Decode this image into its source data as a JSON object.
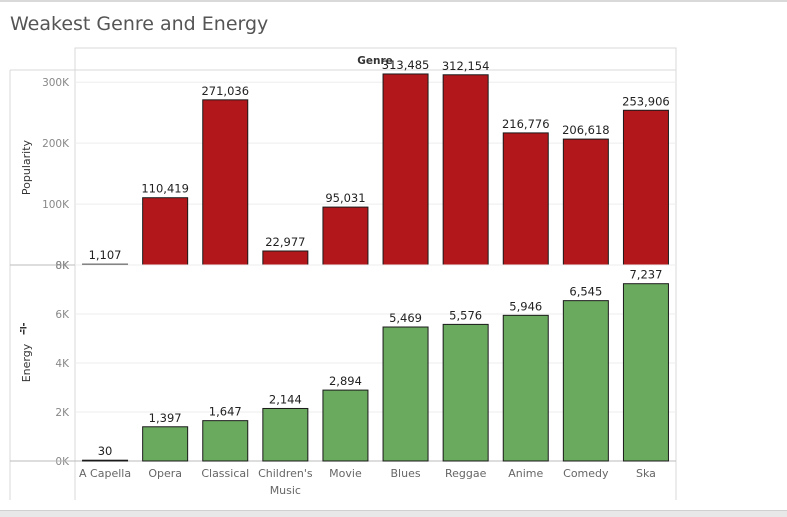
{
  "page": {
    "title": "Weakest Genre and Energy"
  },
  "chart_data": {
    "type": "bar",
    "header": "Genre",
    "categories": [
      "A Capella",
      "Opera",
      "Classical",
      "Children's Music",
      "Movie",
      "Blues",
      "Reggae",
      "Anime",
      "Comedy",
      "Ska"
    ],
    "panels": [
      {
        "measure": "Popularity",
        "color": "#b2181b",
        "ylim": [
          0,
          320000
        ],
        "ticks": [
          0,
          100000,
          200000,
          300000
        ],
        "tick_labels": [
          "0K",
          "100K",
          "200K",
          "300K"
        ],
        "values": [
          1107,
          110419,
          271036,
          22977,
          95031,
          313485,
          312154,
          216776,
          206618,
          253906
        ],
        "labels": [
          "1,107",
          "110,419",
          "271,036",
          "22,977",
          "95,031",
          "313,485",
          "312,154",
          "216,776",
          "206,618",
          "253,906"
        ]
      },
      {
        "measure": "Energy",
        "color": "#6aaa5e",
        "ylim": [
          0,
          8000
        ],
        "ticks": [
          0,
          2000,
          4000,
          6000,
          8000
        ],
        "tick_labels": [
          "0K",
          "2K",
          "4K",
          "6K",
          "8K"
        ],
        "values": [
          30,
          1397,
          1647,
          2144,
          2894,
          5469,
          5576,
          5946,
          6545,
          7237
        ],
        "labels": [
          "30",
          "1,397",
          "1,647",
          "2,144",
          "2,894",
          "5,469",
          "5,576",
          "5,946",
          "6,545",
          "7,237"
        ]
      }
    ]
  }
}
